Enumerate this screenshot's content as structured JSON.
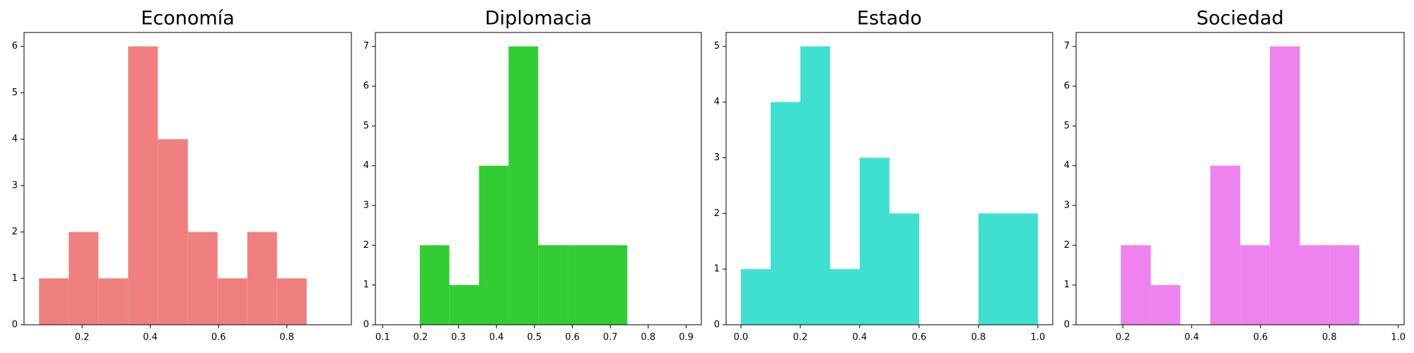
{
  "chart_data": [
    {
      "type": "histogram",
      "title": "Economía",
      "color": "#f08080",
      "bins": [
        0.074,
        0.161,
        0.248,
        0.335,
        0.422,
        0.51,
        0.597,
        0.684,
        0.771,
        0.858,
        0.945
      ],
      "values": [
        1,
        2,
        1,
        6,
        4,
        2,
        1,
        2,
        1,
        0
      ],
      "xlim": [
        0.03,
        0.989
      ],
      "ylim": [
        0,
        6.3
      ],
      "xticks": [
        0.2,
        0.4,
        0.6,
        0.8
      ],
      "yticks": [
        0,
        1,
        2,
        3,
        4,
        5,
        6
      ]
    },
    {
      "type": "histogram",
      "title": "Diplomacia",
      "color": "#32cd32",
      "bins": [
        0.12,
        0.198,
        0.276,
        0.354,
        0.432,
        0.51,
        0.589,
        0.667,
        0.745,
        0.823,
        0.901
      ],
      "values": [
        0,
        2,
        1,
        4,
        7,
        2,
        2,
        2,
        0,
        0
      ],
      "xlim": [
        0.081,
        0.94
      ],
      "ylim": [
        0,
        7.35
      ],
      "xticks": [
        0.1,
        0.2,
        0.3,
        0.4,
        0.5,
        0.6,
        0.7,
        0.8,
        0.9
      ],
      "yticks": [
        0,
        1,
        2,
        3,
        4,
        5,
        6,
        7
      ]
    },
    {
      "type": "histogram",
      "title": "Estado",
      "color": "#40e0d0",
      "bins": [
        0,
        0.1,
        0.2,
        0.3,
        0.4,
        0.5,
        0.6,
        0.7,
        0.8,
        0.9,
        1.0
      ],
      "values": [
        1,
        4,
        5,
        1,
        3,
        2,
        0,
        0,
        2,
        2
      ],
      "xlim": [
        -0.05,
        1.05
      ],
      "ylim": [
        0,
        5.25
      ],
      "xticks": [
        {
          "value": 0,
          "label": "0.0"
        },
        0.2,
        0.4,
        0.6,
        0.8,
        {
          "value": 1,
          "label": "1.0"
        }
      ],
      "yticks": [
        0,
        1,
        2,
        3,
        4,
        5
      ]
    },
    {
      "type": "histogram",
      "title": "Sociedad",
      "color": "#ee82ee",
      "bins": [
        0.107,
        0.194,
        0.281,
        0.367,
        0.454,
        0.541,
        0.627,
        0.714,
        0.801,
        0.887,
        0.974
      ],
      "values": [
        0,
        2,
        1,
        0,
        4,
        2,
        7,
        2,
        2,
        0
      ],
      "xlim": [
        0.064,
        1.017
      ],
      "ylim": [
        0,
        7.35
      ],
      "xticks": [
        0.2,
        0.4,
        0.6,
        0.8,
        {
          "value": 1,
          "label": "1.0"
        }
      ],
      "yticks": [
        0,
        1,
        2,
        3,
        4,
        5,
        6,
        7
      ]
    }
  ]
}
